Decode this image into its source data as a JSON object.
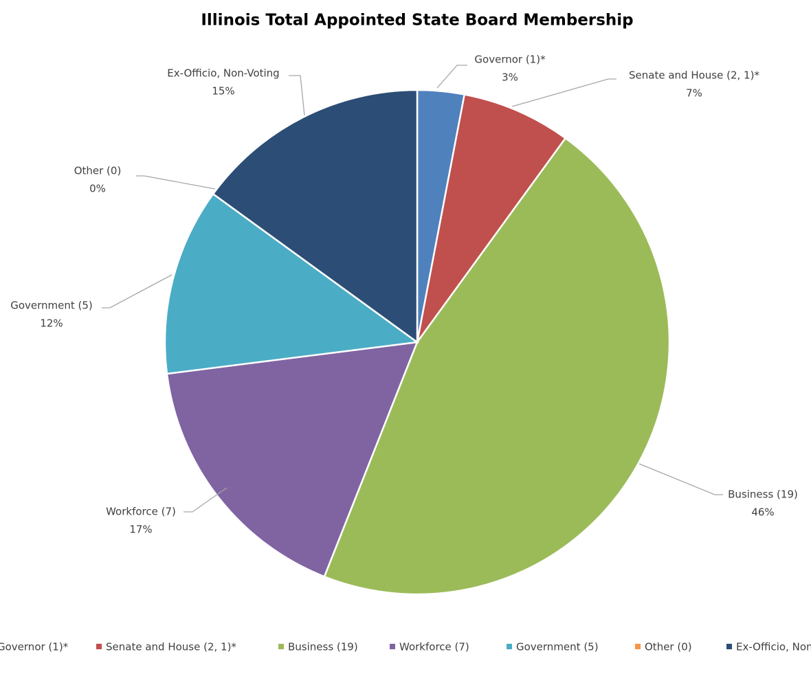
{
  "chart_data": {
    "type": "pie",
    "title": "Illinois Total Appointed State Board Membership",
    "categories": [
      "Governor (1)*",
      "Senate and House (2, 1)*",
      "Business (19)",
      "Workforce (7)",
      "Government (5)",
      "Other (0)",
      "Ex-Officio, Non-Voting"
    ],
    "values": [
      3,
      7,
      46,
      17,
      12,
      0,
      15
    ],
    "value_labels": [
      "3%",
      "7%",
      "46%",
      "17%",
      "12%",
      "0%",
      "15%"
    ],
    "colors": [
      "#4f81bd",
      "#c0504d",
      "#9bbb59",
      "#8064a2",
      "#4bacc6",
      "#f79646",
      "#2c4d75"
    ],
    "legend": "bottom"
  }
}
